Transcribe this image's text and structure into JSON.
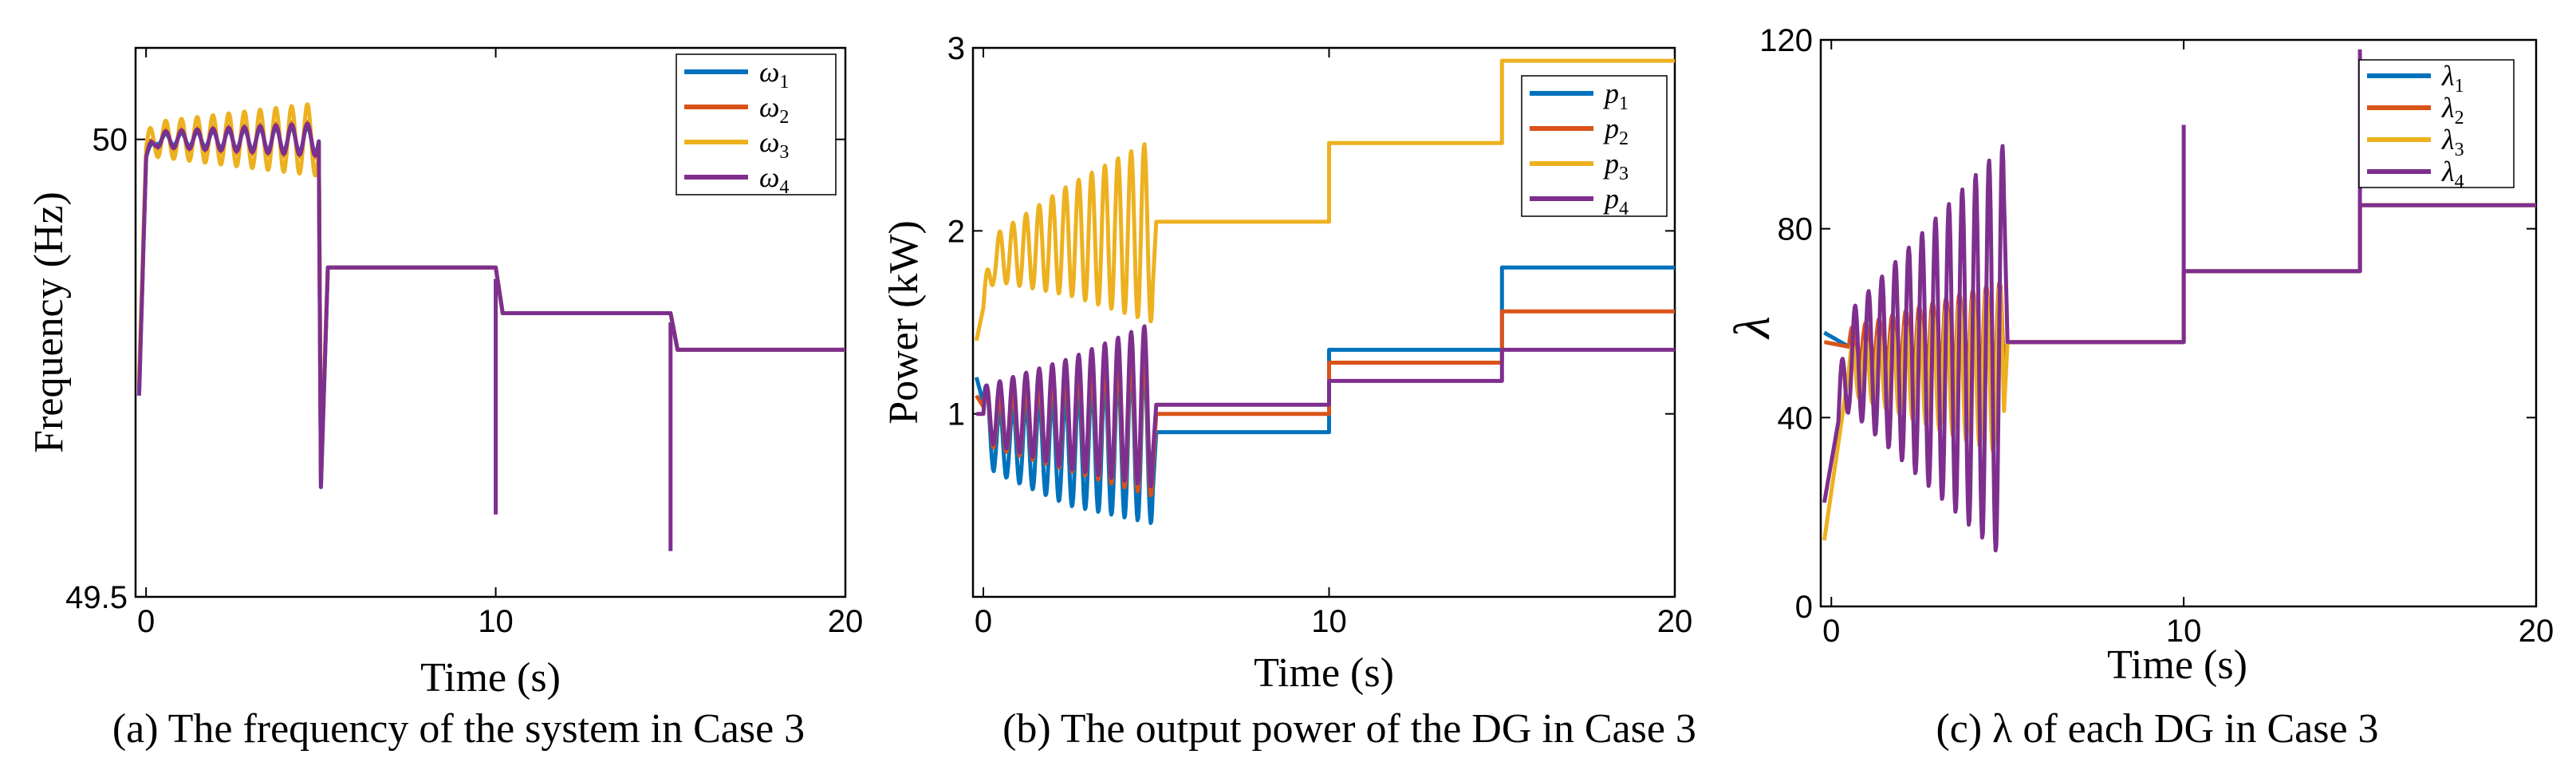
{
  "colors": {
    "series1": "#0072BD",
    "series2": "#D95319",
    "series3": "#EDB120",
    "series4": "#7E2F8E"
  },
  "chart_data": [
    {
      "id": "a",
      "type": "line",
      "caption": "(a) The frequency of the system in Case 3",
      "xlabel": "Time (s)",
      "ylabel": "Frequency (Hz)",
      "xlim": [
        -0.3,
        20
      ],
      "ylim": [
        49.5,
        50.1
      ],
      "xticks": [
        0,
        10,
        20
      ],
      "xtick_labels": [
        "0",
        "10",
        "20"
      ],
      "yticks": [
        49.5,
        50
      ],
      "ytick_labels": [
        "49.5",
        "50"
      ],
      "legend_position": "top-right",
      "series": [
        {
          "name": "ω",
          "sub": "1",
          "color": "#0072BD",
          "x": [
            -0.2,
            0,
            0.3,
            1,
            2,
            3,
            4,
            4.95,
            5.0,
            5.2,
            10,
            10.2,
            15,
            15.2,
            20
          ],
          "y": [
            49.72,
            49.98,
            50.0,
            50.0,
            50.0,
            50.0,
            50.0,
            50.0,
            49.62,
            49.86,
            49.86,
            49.81,
            49.81,
            49.77,
            49.77
          ],
          "oscillation": {
            "t0": 0.0,
            "t1": 4.95,
            "amp0": 0.005,
            "amp1": 0.015,
            "period": 0.45
          }
        },
        {
          "name": "ω",
          "sub": "2",
          "color": "#D95319",
          "x": [
            -0.2,
            0,
            0.3,
            1,
            2,
            3,
            4,
            4.95,
            5.0,
            5.2,
            10,
            10.2,
            15,
            15.2,
            20
          ],
          "y": [
            49.73,
            49.98,
            50.0,
            50.0,
            50.0,
            50.0,
            50.0,
            50.0,
            49.63,
            49.86,
            49.86,
            49.81,
            49.81,
            49.77,
            49.77
          ],
          "oscillation": {
            "t0": 0.0,
            "t1": 4.95,
            "amp0": 0.01,
            "amp1": 0.02,
            "period": 0.45
          }
        },
        {
          "name": "ω",
          "sub": "3",
          "color": "#EDB120",
          "x": [
            -0.2,
            0,
            0.3,
            1,
            2,
            3,
            4,
            4.95,
            5.0,
            5.2,
            10,
            10.2,
            15,
            15.2,
            20
          ],
          "y": [
            49.74,
            49.99,
            50.0,
            50.0,
            50.0,
            50.0,
            50.0,
            50.0,
            49.64,
            49.86,
            49.86,
            49.81,
            49.81,
            49.77,
            49.77
          ],
          "oscillation": {
            "t0": 0.0,
            "t1": 4.95,
            "amp0": 0.018,
            "amp1": 0.04,
            "period": 0.45
          }
        },
        {
          "name": "ω",
          "sub": "4",
          "color": "#7E2F8E",
          "x": [
            -0.2,
            0,
            0.3,
            1,
            2,
            3,
            4,
            4.95,
            5.0,
            5.2,
            10,
            10.2,
            15,
            15.2,
            20
          ],
          "y": [
            49.72,
            49.98,
            50.0,
            50.0,
            50.0,
            50.0,
            50.0,
            50.0,
            49.62,
            49.86,
            49.86,
            49.81,
            49.81,
            49.77,
            49.77
          ],
          "oscillation": {
            "t0": 0.0,
            "t1": 4.95,
            "amp0": 0.008,
            "amp1": 0.018,
            "period": 0.45
          }
        }
      ],
      "spikes": [
        {
          "x": 10.0,
          "y": 49.59
        },
        {
          "x": 15.0,
          "y": 49.55
        }
      ]
    },
    {
      "id": "b",
      "type": "line",
      "caption": "(b) The output power of the DG in Case 3",
      "xlabel": "Time (s)",
      "ylabel": "Power (kW)",
      "xlim": [
        -0.3,
        20
      ],
      "ylim": [
        0.0,
        3.0
      ],
      "xticks": [
        0,
        10,
        20
      ],
      "xtick_labels": [
        "0",
        "10",
        "20"
      ],
      "yticks": [
        1,
        2,
        3
      ],
      "ytick_labels": [
        "1",
        "2",
        "3"
      ],
      "legend_position": "top-right",
      "series": [
        {
          "name": "p",
          "sub": "1",
          "color": "#0072BD",
          "center": [
            [
              -0.2,
              1.2
            ],
            [
              0.3,
              0.85
            ],
            [
              2.5,
              0.8
            ],
            [
              4.9,
              0.85
            ]
          ],
          "oscillation": {
            "t0": 0.0,
            "t1": 4.9,
            "amp0": 0.15,
            "amp1": 0.45,
            "period": 0.38
          },
          "steps": [
            [
              5.0,
              0.9
            ],
            [
              10.0,
              1.35
            ],
            [
              15.0,
              1.8
            ],
            [
              20,
              1.8
            ]
          ]
        },
        {
          "name": "p",
          "sub": "2",
          "color": "#D95319",
          "center": [
            [
              -0.2,
              1.1
            ],
            [
              0.3,
              0.95
            ],
            [
              2.5,
              0.95
            ],
            [
              4.9,
              0.95
            ]
          ],
          "oscillation": {
            "t0": 0.0,
            "t1": 4.9,
            "amp0": 0.12,
            "amp1": 0.4,
            "period": 0.38
          },
          "steps": [
            [
              5.0,
              1.0
            ],
            [
              10.0,
              1.28
            ],
            [
              15.0,
              1.56
            ],
            [
              20,
              1.56
            ]
          ]
        },
        {
          "name": "p",
          "sub": "3",
          "color": "#EDB120",
          "center": [
            [
              -0.2,
              1.4
            ],
            [
              0.3,
              1.85
            ],
            [
              2.5,
              1.95
            ],
            [
              4.9,
              2.0
            ]
          ],
          "oscillation": {
            "t0": 0.0,
            "t1": 4.9,
            "amp0": 0.1,
            "amp1": 0.5,
            "period": 0.38
          },
          "steps": [
            [
              5.0,
              2.05
            ],
            [
              10.0,
              2.48
            ],
            [
              15.0,
              2.93
            ],
            [
              20,
              2.93
            ]
          ]
        },
        {
          "name": "p",
          "sub": "4",
          "color": "#7E2F8E",
          "center": [
            [
              -0.2,
              1.0
            ],
            [
              0.3,
              1.0
            ],
            [
              2.5,
              1.0
            ],
            [
              4.9,
              1.05
            ]
          ],
          "oscillation": {
            "t0": 0.0,
            "t1": 4.9,
            "amp0": 0.15,
            "amp1": 0.45,
            "period": 0.38
          },
          "steps": [
            [
              5.0,
              1.05
            ],
            [
              10.0,
              1.18
            ],
            [
              15.0,
              1.35
            ],
            [
              20,
              1.35
            ]
          ]
        }
      ]
    },
    {
      "id": "c",
      "type": "line",
      "caption": "(c)  λ of each DG in Case 3",
      "xlabel": "Time (s)",
      "ylabel": "λ",
      "xlim": [
        -0.3,
        20
      ],
      "ylim": [
        0,
        120
      ],
      "xticks": [
        0,
        10,
        20
      ],
      "xtick_labels": [
        "0",
        "10",
        "20"
      ],
      "yticks": [
        0,
        40,
        80,
        120
      ],
      "ytick_labels": [
        "0",
        "40",
        "80",
        "120"
      ],
      "legend_position": "top-right",
      "series": [
        {
          "name": "λ",
          "sub": "1",
          "color": "#0072BD",
          "center": [
            [
              -0.2,
              58
            ],
            [
              0.5,
              55
            ],
            [
              4.9,
              55
            ]
          ],
          "oscillation": {
            "t0": 0.5,
            "t1": 4.9,
            "amp0": 2,
            "amp1": 10,
            "period": 0.38
          },
          "steps": [
            [
              5.0,
              56
            ],
            [
              10.0,
              71
            ],
            [
              15.0,
              85
            ],
            [
              20,
              85
            ]
          ]
        },
        {
          "name": "λ",
          "sub": "2",
          "color": "#D95319",
          "center": [
            [
              -0.2,
              56
            ],
            [
              0.5,
              55
            ],
            [
              4.9,
              55
            ]
          ],
          "oscillation": {
            "t0": 0.5,
            "t1": 4.9,
            "amp0": 4,
            "amp1": 14,
            "period": 0.38
          },
          "steps": [
            [
              5.0,
              56
            ],
            [
              10.0,
              71
            ],
            [
              15.0,
              85
            ],
            [
              20,
              85
            ]
          ]
        },
        {
          "name": "λ",
          "sub": "3",
          "color": "#EDB120",
          "center": [
            [
              -0.2,
              14
            ],
            [
              0.5,
              50
            ],
            [
              4.9,
              50
            ]
          ],
          "oscillation": {
            "t0": 0.5,
            "t1": 4.9,
            "amp0": 5,
            "amp1": 18,
            "period": 0.38
          },
          "steps": [
            [
              5.0,
              56
            ],
            [
              10.0,
              71
            ],
            [
              15.0,
              85
            ],
            [
              20,
              85
            ]
          ]
        },
        {
          "name": "λ",
          "sub": "4",
          "color": "#7E2F8E",
          "center": [
            [
              -0.2,
              22
            ],
            [
              0.5,
              52
            ],
            [
              4.9,
              54
            ]
          ],
          "oscillation": {
            "t0": 0.2,
            "t1": 4.9,
            "amp0": 8,
            "amp1": 44,
            "period": 0.38
          },
          "steps": [
            [
              5.0,
              56
            ],
            [
              10.0,
              71
            ],
            [
              15.0,
              85
            ],
            [
              20,
              85
            ]
          ]
        }
      ],
      "spikes": [
        {
          "x": 10.0,
          "y": 102
        },
        {
          "x": 15.0,
          "y": 118
        }
      ]
    }
  ]
}
